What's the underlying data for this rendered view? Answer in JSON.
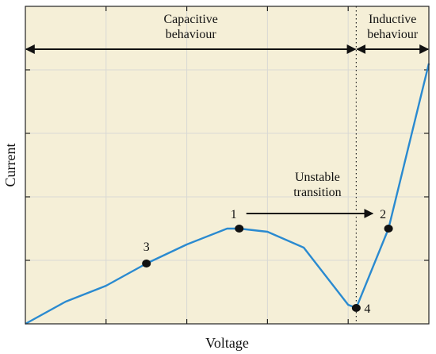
{
  "chart_data": {
    "type": "line",
    "title": "",
    "xlabel": "Voltage",
    "ylabel": "Current",
    "xlim": [
      0,
      5
    ],
    "ylim": [
      0,
      5
    ],
    "grid": true,
    "tick_labels_shown": false,
    "series": [
      {
        "color": "#2a8ad0",
        "points": [
          [
            0,
            0
          ],
          [
            0.5,
            0.35
          ],
          [
            1.0,
            0.6
          ],
          [
            1.5,
            0.95
          ],
          [
            2.0,
            1.25
          ],
          [
            2.5,
            1.5
          ],
          [
            2.65,
            1.5
          ],
          [
            3.0,
            1.45
          ],
          [
            3.45,
            1.2
          ],
          [
            4.0,
            0.3
          ],
          [
            4.1,
            0.25
          ],
          [
            4.5,
            1.5
          ],
          [
            5.0,
            4.1
          ]
        ]
      }
    ],
    "markers": [
      {
        "label": "1",
        "x": 2.65,
        "y": 1.5
      },
      {
        "label": "2",
        "x": 4.5,
        "y": 1.5
      },
      {
        "label": "3",
        "x": 1.5,
        "y": 0.95
      },
      {
        "label": "4",
        "x": 4.1,
        "y": 0.25
      }
    ],
    "divider_x": 4.1,
    "regions": [
      {
        "line1": "Capacitive",
        "line2": "behaviour",
        "from_x": 0,
        "to_x": 4.1
      },
      {
        "line1": "Inductive",
        "line2": "behaviour",
        "from_x": 4.1,
        "to_x": 5
      }
    ],
    "transition": {
      "line1": "Unstable",
      "line2": "transition",
      "from_marker": "1",
      "to_marker": "2"
    },
    "colors": {
      "background": "#f5efd7",
      "line": "#2a8ad0",
      "grid": "#d9d9d4",
      "marker": "#111111"
    }
  }
}
